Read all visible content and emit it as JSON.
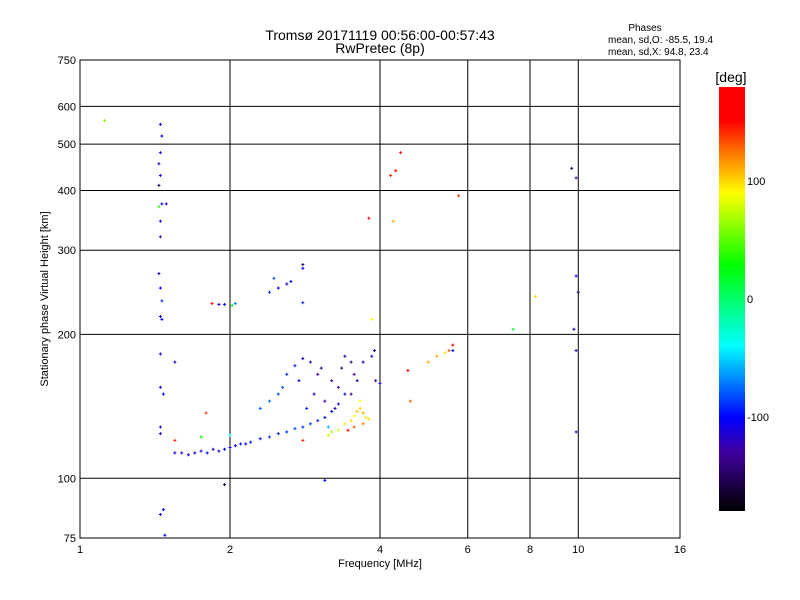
{
  "chart_data": {
    "type": "scatter",
    "title": "Tromsø 20171119 00:56:00-00:57:43",
    "subtitle": "RwPretec (8p)",
    "stats": {
      "heading": "Phases",
      "o_line": "mean, sd,O: -85.5, 19.4",
      "x_line": "mean, sd,X:  94.8, 23.4"
    },
    "xlabel": "Frequency [MHz]",
    "ylabel": "Stationary phase Virtual Height [km]",
    "xscale": "log",
    "yscale": "log",
    "xlim": [
      1,
      16
    ],
    "ylim": [
      75,
      750
    ],
    "xticks": [
      1,
      2,
      4,
      6,
      8,
      10,
      16
    ],
    "yticks": [
      75,
      100,
      200,
      300,
      400,
      500,
      600,
      750
    ],
    "xgrid": [
      2,
      4,
      6,
      8,
      10
    ],
    "ygrid": [
      100,
      200,
      300,
      400,
      500,
      600
    ],
    "colorbar": {
      "label": "[deg]",
      "range": [
        -180,
        180
      ],
      "ticks": [
        100,
        0,
        -100
      ]
    },
    "points_fields": [
      "frequency_mhz",
      "height_km",
      "phase_deg"
    ],
    "points": [
      [
        1.45,
        550,
        -110
      ],
      [
        1.46,
        520,
        -100
      ],
      [
        1.45,
        480,
        -115
      ],
      [
        1.44,
        455,
        -120
      ],
      [
        1.45,
        430,
        -110
      ],
      [
        1.44,
        410,
        -150
      ],
      [
        1.46,
        375,
        -100
      ],
      [
        1.44,
        370,
        40
      ],
      [
        1.45,
        345,
        -110
      ],
      [
        1.45,
        320,
        -130
      ],
      [
        1.44,
        268,
        -110
      ],
      [
        1.45,
        250,
        -100
      ],
      [
        1.46,
        235,
        -90
      ],
      [
        1.45,
        218,
        -115
      ],
      [
        1.46,
        215,
        -100
      ],
      [
        1.45,
        182,
        -105
      ],
      [
        1.45,
        155,
        -110
      ],
      [
        1.47,
        150,
        -100
      ],
      [
        1.45,
        128,
        -120
      ],
      [
        1.45,
        124,
        -110
      ],
      [
        1.47,
        86,
        -100
      ],
      [
        1.45,
        84,
        -110
      ],
      [
        1.48,
        76,
        -100
      ],
      [
        1.55,
        175,
        -115
      ],
      [
        1.49,
        375,
        -110
      ],
      [
        1.12,
        560,
        60
      ],
      [
        1.84,
        232,
        170
      ],
      [
        1.9,
        231,
        -110
      ],
      [
        1.95,
        231,
        -100
      ],
      [
        2.05,
        232,
        -70
      ],
      [
        2.02,
        230,
        20
      ],
      [
        2.4,
        245,
        -90
      ],
      [
        2.5,
        250,
        -100
      ],
      [
        2.6,
        255,
        -110
      ],
      [
        2.65,
        258,
        -95
      ],
      [
        2.8,
        280,
        -150
      ],
      [
        2.8,
        275,
        -100
      ],
      [
        2.45,
        262,
        -80
      ],
      [
        2.8,
        233,
        -90
      ],
      [
        1.55,
        113,
        -110
      ],
      [
        1.6,
        113,
        -115
      ],
      [
        1.65,
        112,
        -110
      ],
      [
        1.7,
        113,
        -105
      ],
      [
        1.75,
        114,
        -110
      ],
      [
        1.8,
        113,
        -100
      ],
      [
        1.85,
        115,
        -110
      ],
      [
        1.9,
        114,
        -105
      ],
      [
        1.95,
        115,
        -100
      ],
      [
        2.0,
        116,
        -105
      ],
      [
        2.05,
        117,
        -100
      ],
      [
        2.1,
        118,
        -95
      ],
      [
        2.15,
        118,
        -100
      ],
      [
        2.2,
        119,
        -95
      ],
      [
        2.3,
        121,
        -95
      ],
      [
        2.4,
        122,
        -90
      ],
      [
        2.5,
        124,
        -95
      ],
      [
        2.6,
        125,
        -90
      ],
      [
        2.7,
        127,
        -85
      ],
      [
        2.8,
        128,
        -90
      ],
      [
        2.9,
        130,
        -85
      ],
      [
        3.0,
        132,
        -90
      ],
      [
        3.1,
        134,
        -95
      ],
      [
        3.2,
        138,
        -100
      ],
      [
        3.3,
        143,
        -110
      ],
      [
        3.4,
        150,
        -110
      ],
      [
        2.3,
        140,
        -80
      ],
      [
        2.4,
        145,
        -75
      ],
      [
        2.55,
        155,
        -80
      ],
      [
        2.6,
        165,
        -90
      ],
      [
        2.5,
        150,
        -85
      ],
      [
        2.7,
        172,
        -95
      ],
      [
        2.75,
        160,
        -100
      ],
      [
        2.8,
        178,
        -110
      ],
      [
        2.9,
        175,
        -120
      ],
      [
        2.85,
        140,
        -90
      ],
      [
        2.95,
        150,
        -110
      ],
      [
        3.0,
        165,
        -130
      ],
      [
        3.05,
        170,
        -140
      ],
      [
        3.1,
        145,
        -130
      ],
      [
        3.2,
        160,
        -140
      ],
      [
        3.3,
        155,
        -135
      ],
      [
        3.35,
        170,
        -130
      ],
      [
        3.4,
        180,
        -125
      ],
      [
        3.5,
        175,
        -140
      ],
      [
        3.55,
        165,
        -130
      ],
      [
        3.6,
        160,
        -125
      ],
      [
        3.7,
        175,
        -110
      ],
      [
        3.5,
        150,
        -140
      ],
      [
        3.25,
        140,
        -120
      ],
      [
        3.15,
        128,
        -60
      ],
      [
        3.2,
        125,
        70
      ],
      [
        3.3,
        126,
        80
      ],
      [
        3.4,
        130,
        95
      ],
      [
        3.5,
        132,
        100
      ],
      [
        3.55,
        135,
        90
      ],
      [
        3.6,
        138,
        105
      ],
      [
        3.65,
        140,
        100
      ],
      [
        3.7,
        137,
        110
      ],
      [
        3.75,
        134,
        95
      ],
      [
        3.8,
        133,
        100
      ],
      [
        3.65,
        145,
        90
      ],
      [
        3.55,
        128,
        130
      ],
      [
        3.45,
        126,
        160
      ],
      [
        3.7,
        130,
        120
      ],
      [
        3.85,
        180,
        -120
      ],
      [
        3.9,
        185,
        -110
      ],
      [
        3.92,
        160,
        -130
      ],
      [
        4.0,
        158,
        -105
      ],
      [
        3.85,
        215,
        90
      ],
      [
        3.8,
        350,
        160
      ],
      [
        4.2,
        430,
        140
      ],
      [
        4.25,
        345,
        110
      ],
      [
        4.4,
        480,
        150
      ],
      [
        4.3,
        440,
        150
      ],
      [
        4.55,
        168,
        170
      ],
      [
        4.6,
        145,
        130
      ],
      [
        5.0,
        175,
        110
      ],
      [
        5.2,
        180,
        110
      ],
      [
        5.4,
        183,
        100
      ],
      [
        5.5,
        185,
        130
      ],
      [
        5.6,
        190,
        150
      ],
      [
        5.6,
        185,
        -100
      ],
      [
        5.75,
        390,
        140
      ],
      [
        7.4,
        205,
        20
      ],
      [
        8.2,
        240,
        100
      ],
      [
        9.7,
        445,
        -150
      ],
      [
        9.9,
        425,
        -130
      ],
      [
        9.9,
        265,
        -100
      ],
      [
        10.0,
        245,
        -150
      ],
      [
        9.8,
        205,
        -110
      ],
      [
        9.9,
        185,
        -120
      ],
      [
        9.9,
        125,
        -120
      ],
      [
        1.95,
        97,
        -160
      ],
      [
        3.1,
        99,
        -100
      ],
      [
        1.79,
        137,
        140
      ],
      [
        1.55,
        120,
        140
      ],
      [
        1.75,
        122,
        30
      ],
      [
        2.0,
        123,
        -40
      ],
      [
        2.8,
        120,
        140
      ],
      [
        3.15,
        123,
        80
      ]
    ]
  }
}
